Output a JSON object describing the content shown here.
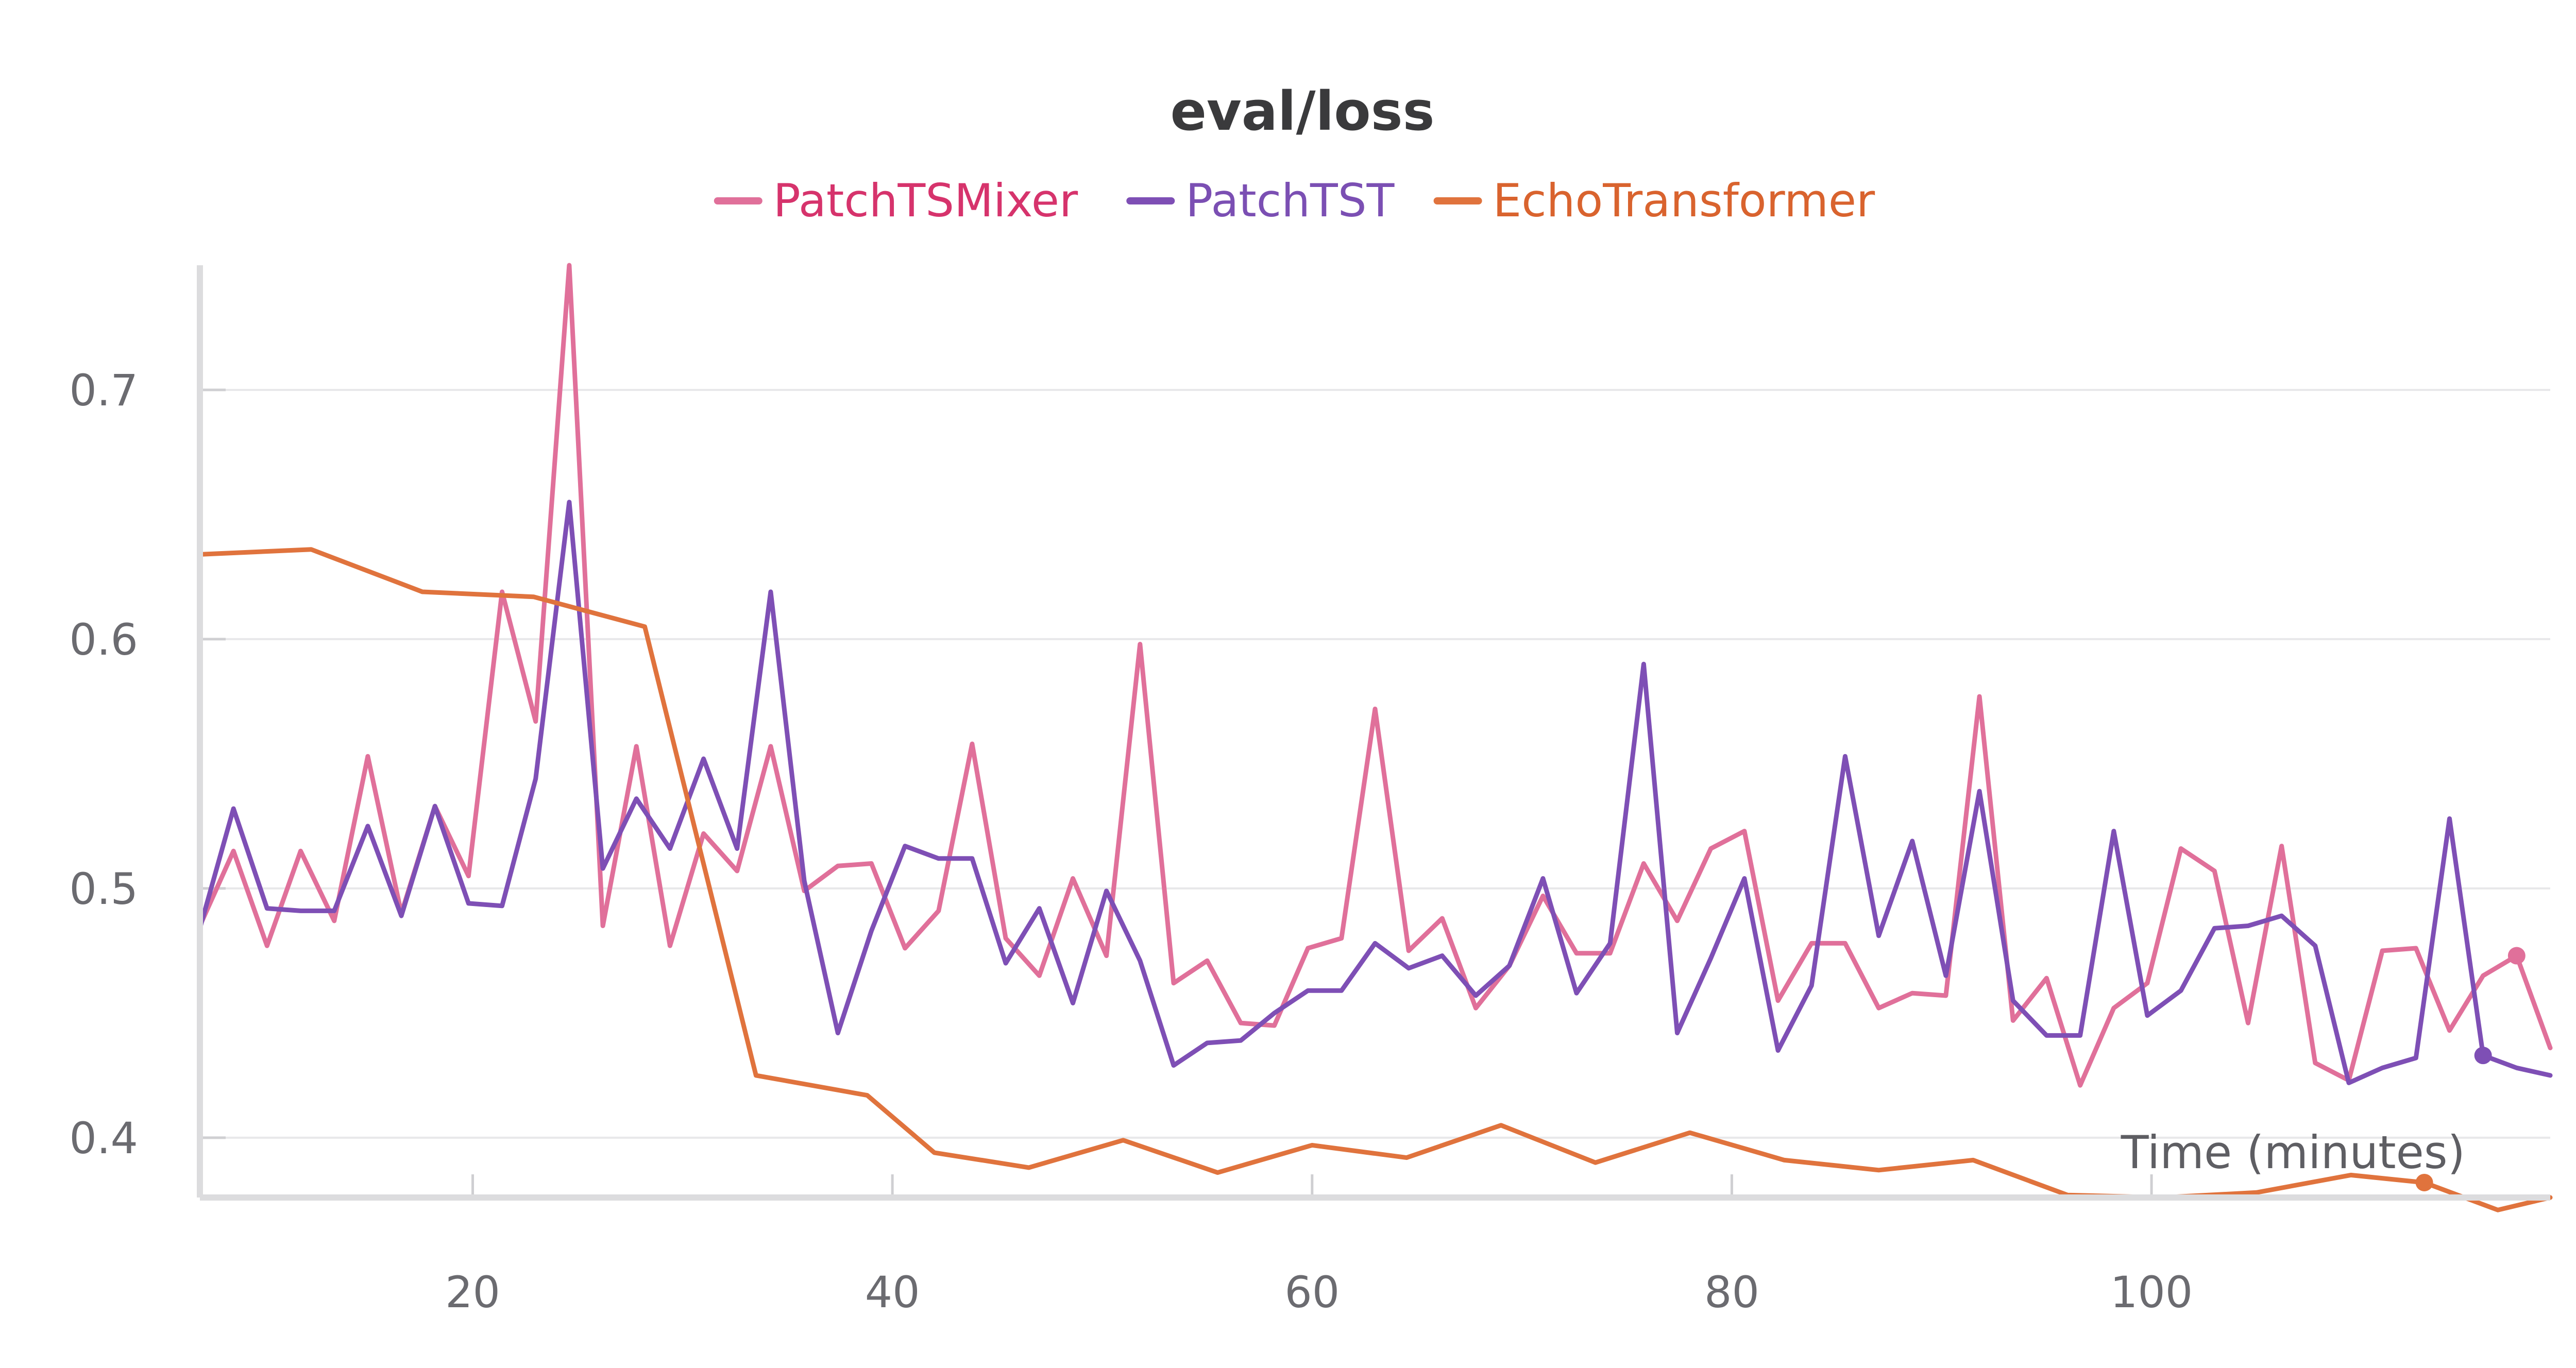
{
  "chart_data": {
    "type": "line",
    "title": "eval/loss",
    "xlabel": "Time (minutes)",
    "ylabel": "",
    "xlim": [
      7,
      119
    ],
    "ylim": [
      0.376,
      0.75
    ],
    "x_ticks": [
      20,
      40,
      60,
      80,
      100
    ],
    "y_ticks": [
      0.4,
      0.5,
      0.6,
      0.7
    ],
    "grid": true,
    "legend_position": "top-center",
    "series": [
      {
        "name": "PatchTSMixer",
        "color": "#e0709a",
        "label_color": "#d6336c",
        "x": [
          7.0,
          8.6,
          10.2,
          11.8,
          13.4,
          15.0,
          16.6,
          18.2,
          19.8,
          21.4,
          23.0,
          24.6,
          26.2,
          27.8,
          29.4,
          31.0,
          32.6,
          34.2,
          35.8,
          37.4,
          39.0,
          40.6,
          42.2,
          43.8,
          45.4,
          47.0,
          48.6,
          50.2,
          51.8,
          53.4,
          55.0,
          56.6,
          58.2,
          59.8,
          61.4,
          63.0,
          64.6,
          66.2,
          67.8,
          69.4,
          71.0,
          72.6,
          74.2,
          75.8,
          77.4,
          79.0,
          80.6,
          82.2,
          83.8,
          85.4,
          87.0,
          88.6,
          90.2,
          91.8,
          93.4,
          95.0,
          96.6,
          98.2,
          99.8,
          101.4,
          103.0,
          104.6,
          106.2,
          107.8,
          109.4,
          111.0,
          112.6,
          114.2,
          115.8,
          117.4,
          119.0
        ],
        "values": [
          0.485,
          0.515,
          0.477,
          0.515,
          0.487,
          0.553,
          0.49,
          0.533,
          0.505,
          0.619,
          0.567,
          0.75,
          0.485,
          0.557,
          0.477,
          0.522,
          0.507,
          0.557,
          0.499,
          0.509,
          0.51,
          0.476,
          0.491,
          0.558,
          0.48,
          0.465,
          0.504,
          0.473,
          0.598,
          0.462,
          0.471,
          0.446,
          0.445,
          0.476,
          0.48,
          0.572,
          0.475,
          0.488,
          0.452,
          0.469,
          0.497,
          0.474,
          0.474,
          0.51,
          0.487,
          0.516,
          0.523,
          0.455,
          0.478,
          0.478,
          0.452,
          0.458,
          0.457,
          0.577,
          0.447,
          0.464,
          0.421,
          0.452,
          0.462,
          0.516,
          0.507,
          0.446,
          0.517,
          0.43,
          0.423,
          0.475,
          0.476,
          0.443,
          0.465,
          0.473,
          0.436
        ]
      },
      {
        "name": "PatchTST",
        "color": "#7e4fb5",
        "label_color": "#7b4fb3",
        "x": [
          7.0,
          8.6,
          10.2,
          11.8,
          13.4,
          15.0,
          16.6,
          18.2,
          19.8,
          21.4,
          23.0,
          24.6,
          26.2,
          27.8,
          29.4,
          31.0,
          32.6,
          34.2,
          35.8,
          37.4,
          39.0,
          40.6,
          42.2,
          43.8,
          45.4,
          47.0,
          48.6,
          50.2,
          51.8,
          53.4,
          55.0,
          56.6,
          58.2,
          59.8,
          61.4,
          63.0,
          64.6,
          66.2,
          67.8,
          69.4,
          71.0,
          72.6,
          74.2,
          75.8,
          77.4,
          79.0,
          80.6,
          82.2,
          83.8,
          85.4,
          87.0,
          88.6,
          90.2,
          91.8,
          93.4,
          95.0,
          96.6,
          98.2,
          99.8,
          101.4,
          103.0,
          104.6,
          106.2,
          107.8,
          109.4,
          111.0,
          112.6,
          114.2,
          115.8,
          117.4,
          119.0
        ],
        "values": [
          0.484,
          0.532,
          0.492,
          0.491,
          0.491,
          0.525,
          0.489,
          0.533,
          0.494,
          0.493,
          0.544,
          0.655,
          0.508,
          0.536,
          0.516,
          0.552,
          0.516,
          0.619,
          0.503,
          0.442,
          0.483,
          0.517,
          0.512,
          0.512,
          0.47,
          0.492,
          0.454,
          0.499,
          0.471,
          0.429,
          0.438,
          0.439,
          0.45,
          0.459,
          0.459,
          0.478,
          0.468,
          0.473,
          0.457,
          0.469,
          0.504,
          0.458,
          0.478,
          0.59,
          0.442,
          0.472,
          0.504,
          0.435,
          0.461,
          0.553,
          0.481,
          0.519,
          0.465,
          0.539,
          0.455,
          0.441,
          0.441,
          0.523,
          0.449,
          0.459,
          0.484,
          0.485,
          0.489,
          0.477,
          0.422,
          0.428,
          0.432,
          0.528,
          0.433,
          0.428,
          0.425
        ]
      },
      {
        "name": "EchoTransformer",
        "color": "#e0733d",
        "label_color": "#d9632e",
        "x": [
          7.0,
          12.3,
          17.6,
          22.9,
          28.2,
          33.5,
          38.8,
          42.0,
          46.5,
          51.0,
          55.5,
          60.0,
          64.5,
          69.0,
          73.5,
          78.0,
          82.5,
          87.0,
          91.5,
          96.0,
          100.5,
          105.0,
          109.5,
          113.0,
          116.5,
          119.0
        ],
        "values": [
          0.634,
          0.636,
          0.619,
          0.617,
          0.605,
          0.425,
          0.417,
          0.394,
          0.388,
          0.399,
          0.386,
          0.397,
          0.392,
          0.405,
          0.39,
          0.402,
          0.391,
          0.387,
          0.391,
          0.377,
          0.376,
          0.378,
          0.385,
          0.382,
          0.371,
          0.376
        ]
      }
    ]
  }
}
